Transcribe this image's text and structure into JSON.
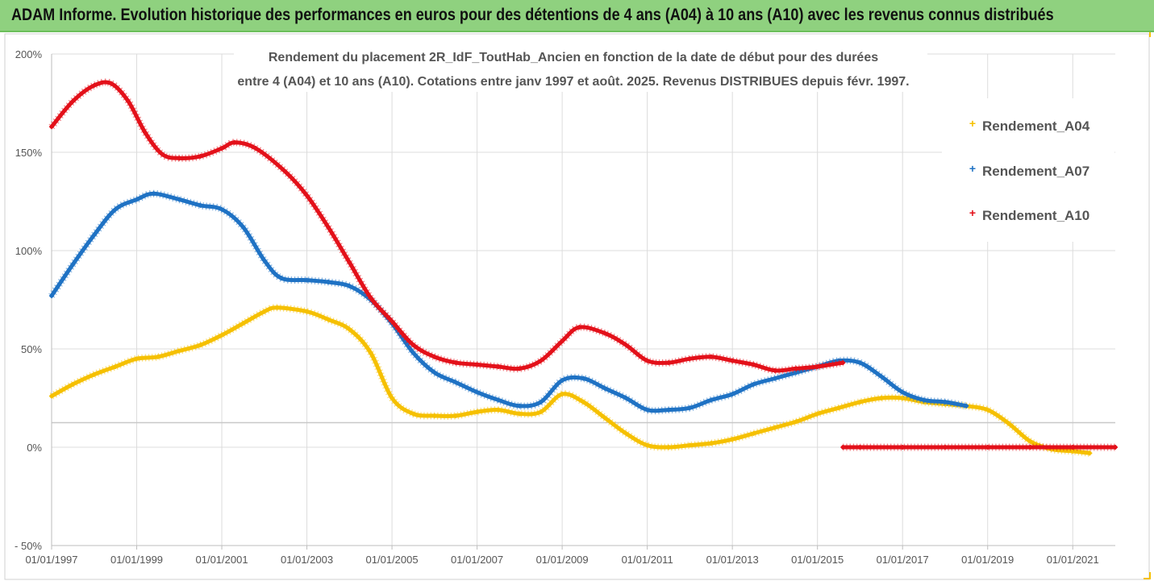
{
  "banner": {
    "text": "ADAM Informe. Evolution historique des performances en euros pour des détentions de 4 ans (A04) à 10 ans (A10) avec les revenus connus distribués"
  },
  "chart_data": {
    "type": "scatter",
    "title_lines": [
      "Rendement du placement 2R_IdF_ToutHab_Ancien en fonction de la date de début pour des durées",
      "entre 4 (A04) et 10 ans (A10). Cotations entre janv 1997 et août. 2025. Revenus DISTRIBUES depuis févr. 1997."
    ],
    "xlabel": "",
    "ylabel": "",
    "x_unit": "year",
    "xlim": [
      1997.0,
      2022.0
    ],
    "ylim": [
      -50,
      200
    ],
    "y_ticks": [
      -50,
      0,
      50,
      100,
      150,
      200
    ],
    "y_tick_labels": [
      "- 50%",
      "0%",
      "50%",
      "100%",
      "150%",
      "200%"
    ],
    "x_ticks": [
      1997,
      1999,
      2001,
      2003,
      2005,
      2007,
      2009,
      2011,
      2013,
      2015,
      2017,
      2019,
      2021
    ],
    "x_tick_labels": [
      "01/01/1997",
      "01/01/1999",
      "01/01/2001",
      "01/01/2003",
      "01/01/2005",
      "01/01/2007",
      "01/01/2009",
      "01/01/2011",
      "01/01/2013",
      "01/01/2015",
      "01/01/2017",
      "01/01/2019",
      "01/01/2021"
    ],
    "grid": "horizontal",
    "legend_position": "right",
    "series": [
      {
        "name": "Rendement_A04",
        "color": "#f5c000",
        "points": [
          [
            1997.0,
            26
          ],
          [
            1997.5,
            32
          ],
          [
            1998.0,
            37
          ],
          [
            1998.5,
            41
          ],
          [
            1999.0,
            45
          ],
          [
            1999.5,
            46
          ],
          [
            2000.0,
            49
          ],
          [
            2000.5,
            52
          ],
          [
            2001.0,
            57
          ],
          [
            2001.5,
            63
          ],
          [
            2002.0,
            69
          ],
          [
            2002.3,
            71
          ],
          [
            2003.0,
            69
          ],
          [
            2003.5,
            65
          ],
          [
            2004.0,
            60
          ],
          [
            2004.5,
            48
          ],
          [
            2005.0,
            25
          ],
          [
            2005.5,
            17
          ],
          [
            2006.0,
            16
          ],
          [
            2006.5,
            16
          ],
          [
            2007.0,
            18
          ],
          [
            2007.5,
            19
          ],
          [
            2008.0,
            17
          ],
          [
            2008.5,
            18
          ],
          [
            2009.0,
            27
          ],
          [
            2009.5,
            23
          ],
          [
            2010.0,
            15
          ],
          [
            2010.5,
            7
          ],
          [
            2011.0,
            1
          ],
          [
            2011.5,
            0
          ],
          [
            2012.0,
            1
          ],
          [
            2012.5,
            2
          ],
          [
            2013.0,
            4
          ],
          [
            2013.5,
            7
          ],
          [
            2014.0,
            10
          ],
          [
            2014.5,
            13
          ],
          [
            2015.0,
            17
          ],
          [
            2015.5,
            20
          ],
          [
            2016.0,
            23
          ],
          [
            2016.5,
            25
          ],
          [
            2017.0,
            25
          ],
          [
            2017.5,
            23
          ],
          [
            2018.0,
            22
          ],
          [
            2018.5,
            21
          ],
          [
            2019.0,
            19
          ],
          [
            2019.5,
            12
          ],
          [
            2020.0,
            3
          ],
          [
            2020.5,
            -1
          ],
          [
            2021.0,
            -2
          ],
          [
            2021.4,
            -3
          ]
        ]
      },
      {
        "name": "Rendement_A07",
        "color": "#1f72c4",
        "points": [
          [
            1997.0,
            77
          ],
          [
            1997.5,
            93
          ],
          [
            1998.0,
            108
          ],
          [
            1998.5,
            121
          ],
          [
            1999.0,
            126
          ],
          [
            1999.4,
            129
          ],
          [
            2000.0,
            126
          ],
          [
            2000.5,
            123
          ],
          [
            2001.0,
            121
          ],
          [
            2001.5,
            112
          ],
          [
            2002.0,
            95
          ],
          [
            2002.4,
            86
          ],
          [
            2003.0,
            85
          ],
          [
            2003.5,
            84
          ],
          [
            2004.0,
            82
          ],
          [
            2004.5,
            75
          ],
          [
            2005.0,
            63
          ],
          [
            2005.5,
            48
          ],
          [
            2006.0,
            38
          ],
          [
            2006.5,
            33
          ],
          [
            2007.0,
            28
          ],
          [
            2007.5,
            24
          ],
          [
            2008.0,
            21
          ],
          [
            2008.5,
            23
          ],
          [
            2009.0,
            34
          ],
          [
            2009.5,
            35
          ],
          [
            2010.0,
            30
          ],
          [
            2010.5,
            25
          ],
          [
            2011.0,
            19
          ],
          [
            2011.5,
            19
          ],
          [
            2012.0,
            20
          ],
          [
            2012.5,
            24
          ],
          [
            2013.0,
            27
          ],
          [
            2013.5,
            32
          ],
          [
            2014.0,
            35
          ],
          [
            2014.5,
            38
          ],
          [
            2015.0,
            41
          ],
          [
            2015.5,
            44
          ],
          [
            2016.0,
            43
          ],
          [
            2016.5,
            36
          ],
          [
            2017.0,
            28
          ],
          [
            2017.5,
            24
          ],
          [
            2018.0,
            23
          ],
          [
            2018.5,
            21
          ]
        ]
      },
      {
        "name": "Rendement_A10",
        "color": "#e3111a",
        "points": [
          [
            1997.0,
            163
          ],
          [
            1997.5,
            176
          ],
          [
            1998.0,
            184
          ],
          [
            1998.4,
            185
          ],
          [
            1998.8,
            176
          ],
          [
            1999.2,
            160
          ],
          [
            1999.6,
            149
          ],
          [
            2000.0,
            147
          ],
          [
            2000.5,
            148
          ],
          [
            2001.0,
            152
          ],
          [
            2001.3,
            155
          ],
          [
            2001.8,
            152
          ],
          [
            2002.5,
            140
          ],
          [
            2003.0,
            128
          ],
          [
            2003.5,
            112
          ],
          [
            2004.0,
            94
          ],
          [
            2004.5,
            76
          ],
          [
            2005.0,
            64
          ],
          [
            2005.5,
            52
          ],
          [
            2006.0,
            46
          ],
          [
            2006.5,
            43
          ],
          [
            2007.0,
            42
          ],
          [
            2007.5,
            41
          ],
          [
            2008.0,
            40
          ],
          [
            2008.5,
            44
          ],
          [
            2009.0,
            54
          ],
          [
            2009.4,
            61
          ],
          [
            2010.0,
            58
          ],
          [
            2010.5,
            52
          ],
          [
            2011.0,
            44
          ],
          [
            2011.5,
            43
          ],
          [
            2012.0,
            45
          ],
          [
            2012.5,
            46
          ],
          [
            2013.0,
            44
          ],
          [
            2013.5,
            42
          ],
          [
            2014.0,
            39
          ],
          [
            2014.5,
            40
          ],
          [
            2015.0,
            41
          ],
          [
            2015.6,
            43
          ],
          [
            2015.6,
            0
          ],
          [
            2016.0,
            0
          ],
          [
            2017.0,
            0
          ],
          [
            2018.0,
            0
          ],
          [
            2019.0,
            0
          ],
          [
            2020.0,
            0
          ],
          [
            2021.0,
            0
          ],
          [
            2022.0,
            0
          ]
        ]
      }
    ]
  }
}
